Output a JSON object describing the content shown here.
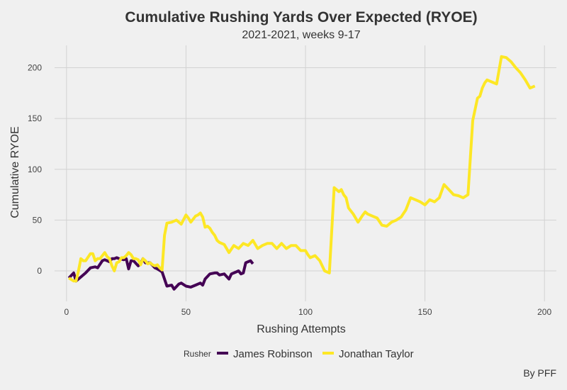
{
  "chart_data": {
    "type": "line",
    "title": "Cumulative Rushing Yards Over Expected (RYOE)",
    "subtitle": "2021-2021, weeks 9-17",
    "xlabel": "Rushing Attempts",
    "ylabel": "Cumulative RYOE",
    "xlim": [
      -5,
      205
    ],
    "ylim": [
      -30,
      222
    ],
    "xticks": [
      0,
      50,
      100,
      150,
      200
    ],
    "yticks": [
      0,
      50,
      100,
      150,
      200
    ],
    "grid": true,
    "legend": {
      "title": "Rusher",
      "position": "bottom"
    },
    "caption": "By PFF",
    "series": [
      {
        "name": "James Robinson",
        "color": "#440154",
        "x": [
          1,
          3,
          4,
          6,
          8,
          10,
          12,
          13,
          15,
          16,
          18,
          19,
          20,
          21,
          22,
          24,
          25,
          26,
          27,
          28,
          30,
          31,
          32,
          33,
          35,
          37,
          38,
          40,
          42,
          44,
          45,
          47,
          48,
          50,
          52,
          54,
          56,
          57,
          58,
          60,
          62,
          63,
          64,
          66,
          68,
          69,
          71,
          72,
          73,
          74,
          75,
          76,
          77,
          78
        ],
        "y": [
          -7,
          -2,
          -10,
          -6,
          -2,
          3,
          4,
          3,
          10,
          11,
          9,
          12,
          12,
          13,
          12,
          11,
          12,
          2,
          10,
          10,
          5,
          7,
          12,
          8,
          8,
          3,
          2,
          -1,
          -15,
          -14,
          -18,
          -13,
          -12,
          -15,
          -16,
          -14,
          -12,
          -14,
          -8,
          -3,
          -2,
          -2,
          -4,
          -3,
          -8,
          -3,
          -1,
          0,
          -3,
          -2,
          8,
          9,
          10,
          7
        ]
      },
      {
        "name": "Jonathan Taylor",
        "color": "#fde725",
        "x": [
          1,
          3,
          4,
          5,
          6,
          7,
          8,
          10,
          11,
          12,
          13,
          14,
          16,
          17,
          18,
          19,
          20,
          21,
          22,
          23,
          24,
          25,
          26,
          27,
          28,
          29,
          30,
          31,
          32,
          33,
          34,
          35,
          36,
          37,
          38,
          39,
          40,
          41,
          42,
          44,
          46,
          48,
          50,
          51,
          52,
          54,
          55,
          56,
          57,
          58,
          59,
          60,
          61,
          62,
          63,
          64,
          66,
          68,
          70,
          72,
          74,
          76,
          78,
          80,
          82,
          84,
          86,
          88,
          90,
          92,
          94,
          96,
          98,
          100,
          101,
          102,
          104,
          106,
          108,
          110,
          112,
          114,
          115,
          116,
          117,
          118,
          120,
          122,
          124,
          125,
          126,
          128,
          130,
          132,
          134,
          136,
          138,
          140,
          142,
          144,
          146,
          148,
          150,
          152,
          154,
          156,
          158,
          160,
          162,
          164,
          166,
          168,
          170,
          172,
          173,
          174,
          175,
          176,
          178,
          180,
          182,
          184,
          185,
          186,
          188,
          190,
          192,
          194,
          196
        ],
        "y": [
          -7,
          -10,
          -10,
          0,
          12,
          10,
          10,
          17,
          17,
          10,
          12,
          12,
          18,
          14,
          12,
          5,
          0,
          8,
          9,
          13,
          13,
          15,
          18,
          16,
          12,
          12,
          11,
          6,
          12,
          10,
          7,
          8,
          6,
          5,
          6,
          3,
          1,
          35,
          47,
          48,
          50,
          46,
          55,
          52,
          48,
          54,
          55,
          57,
          53,
          43,
          44,
          42,
          38,
          35,
          30,
          28,
          26,
          18,
          25,
          22,
          27,
          25,
          30,
          22,
          25,
          27,
          27,
          22,
          27,
          22,
          25,
          25,
          20,
          20,
          16,
          13,
          15,
          10,
          0,
          -2,
          82,
          78,
          80,
          75,
          72,
          62,
          56,
          48,
          55,
          58,
          56,
          54,
          52,
          45,
          44,
          48,
          50,
          53,
          60,
          72,
          70,
          68,
          65,
          70,
          68,
          72,
          85,
          80,
          75,
          74,
          72,
          75,
          148,
          170,
          172,
          180,
          185,
          188,
          186,
          184,
          211,
          210,
          208,
          206,
          200,
          195,
          188,
          180,
          182
        ]
      }
    ]
  }
}
